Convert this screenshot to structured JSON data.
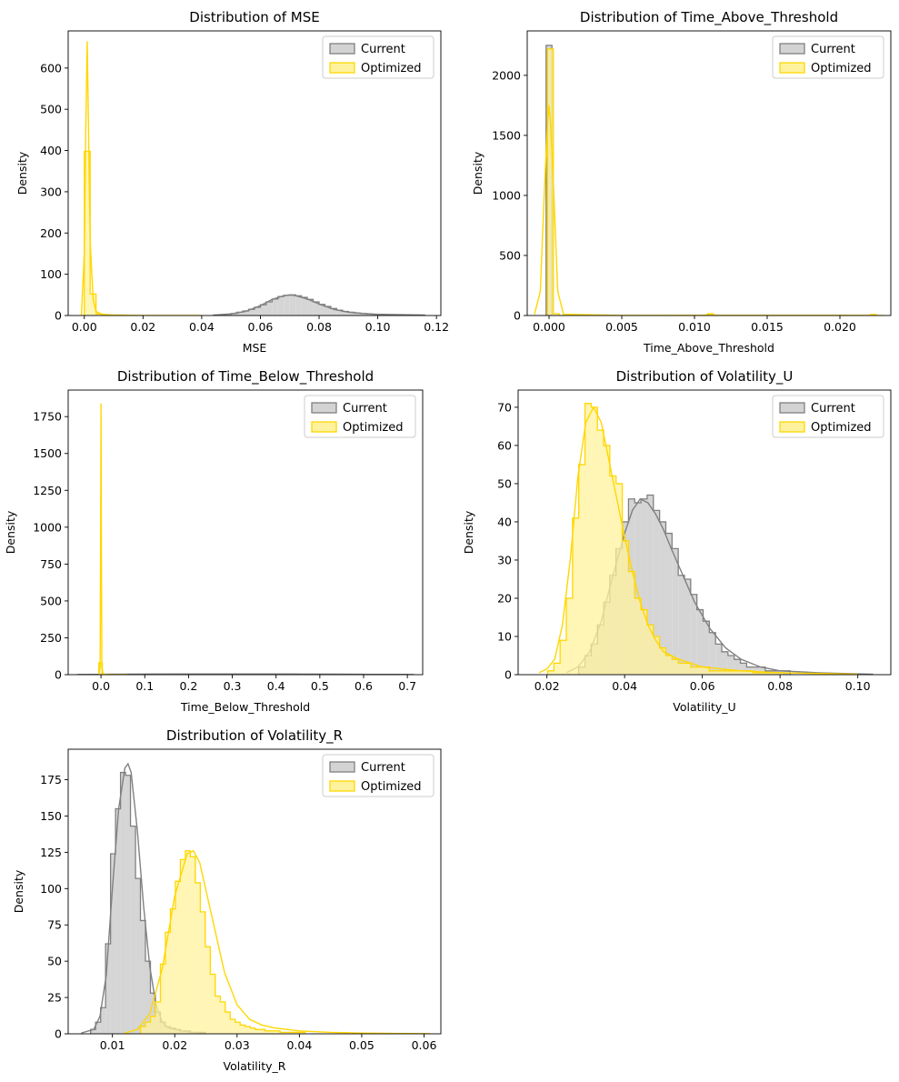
{
  "figure": {
    "colors": {
      "current_fill": "#d3d3d3",
      "current_line": "#808080",
      "optimized_fill": "#fff29e",
      "optimized_line": "#ffd700"
    }
  },
  "chart_data": [
    {
      "type": "histogram",
      "title": "Distribution of MSE",
      "xlabel": "MSE",
      "ylabel": "Density",
      "xlim": [
        -0.0055,
        0.1215
      ],
      "ylim": [
        0,
        690
      ],
      "xticks": [
        0.0,
        0.02,
        0.04,
        0.06,
        0.08,
        0.1,
        0.12
      ],
      "xtick_labels": [
        "0.00",
        "0.02",
        "0.04",
        "0.06",
        "0.08",
        "0.10",
        "0.12"
      ],
      "yticks": [
        0,
        100,
        200,
        300,
        400,
        500,
        600
      ],
      "ytick_labels": [
        "0",
        "100",
        "200",
        "300",
        "400",
        "500",
        "600"
      ],
      "legend": {
        "position": "top-right",
        "entries": [
          "Current",
          "Optimized"
        ]
      },
      "series": [
        {
          "name": "Current",
          "color": "#808080",
          "fill": "#d3d3d3",
          "hist_edges": [
            0.044,
            0.046,
            0.048,
            0.05,
            0.052,
            0.054,
            0.056,
            0.058,
            0.06,
            0.062,
            0.064,
            0.066,
            0.068,
            0.07,
            0.072,
            0.074,
            0.076,
            0.078,
            0.08,
            0.082,
            0.084,
            0.086,
            0.088,
            0.09,
            0.092,
            0.094,
            0.096,
            0.098,
            0.1,
            0.102,
            0.104,
            0.106,
            0.108,
            0.11,
            0.112,
            0.114,
            0.116
          ],
          "hist_values": [
            1,
            2,
            3,
            5,
            8,
            11,
            15,
            20,
            26,
            33,
            40,
            46,
            49,
            50,
            48,
            44,
            39,
            33,
            27,
            22,
            17,
            13,
            10,
            8,
            6,
            5,
            4,
            3,
            3,
            2,
            2,
            2,
            1,
            1,
            1,
            1
          ],
          "kde_x": [
            0.044,
            0.05,
            0.055,
            0.06,
            0.064,
            0.068,
            0.07,
            0.072,
            0.076,
            0.08,
            0.085,
            0.09,
            0.095,
            0.1,
            0.108,
            0.116
          ],
          "kde_y": [
            1,
            4,
            10,
            24,
            39,
            48,
            50,
            48,
            40,
            28,
            15,
            8,
            5,
            3,
            2,
            1
          ]
        },
        {
          "name": "Optimized",
          "color": "#ffd700",
          "fill": "#fff29e",
          "hist_edges": [
            0.0,
            0.002,
            0.004,
            0.006,
            0.008,
            0.01,
            0.012,
            0.014
          ],
          "hist_values": [
            398,
            52,
            4,
            2,
            1,
            1,
            1
          ],
          "kde_x": [
            -0.001,
            0.0,
            0.0005,
            0.001,
            0.0015,
            0.002,
            0.003,
            0.004,
            0.006,
            0.01,
            0.02,
            0.04
          ],
          "kde_y": [
            0,
            150,
            450,
            665,
            420,
            180,
            40,
            10,
            3,
            1,
            0,
            0
          ]
        }
      ]
    },
    {
      "type": "histogram",
      "title": "Distribution of Time_Above_Threshold",
      "xlabel": "Time_Above_Threshold",
      "ylabel": "Density",
      "xlim": [
        -0.0015,
        0.0235
      ],
      "ylim": [
        0,
        2370
      ],
      "xticks": [
        0.0,
        0.005,
        0.01,
        0.015,
        0.02
      ],
      "xtick_labels": [
        "0.000",
        "0.005",
        "0.010",
        "0.015",
        "0.020"
      ],
      "yticks": [
        0,
        500,
        1000,
        1500,
        2000
      ],
      "ytick_labels": [
        "0",
        "500",
        "1000",
        "1500",
        "2000"
      ],
      "legend": {
        "position": "top-right",
        "entries": [
          "Current",
          "Optimized"
        ]
      },
      "series": [
        {
          "name": "Current",
          "color": "#808080",
          "fill": "#d3d3d3",
          "hist_edges": [
            -0.0002,
            0.0002
          ],
          "hist_values": [
            2250
          ],
          "kde_x": [],
          "kde_y": []
        },
        {
          "name": "Optimized",
          "color": "#ffd700",
          "fill": "#fff29e",
          "hist_edges": [
            -0.0001,
            0.0003,
            0.0007,
            0.0109,
            0.0113,
            0.0221,
            0.0225
          ],
          "hist_values": [
            2220,
            15,
            0,
            15,
            0,
            8
          ],
          "kde_x": [
            -0.001,
            -0.0006,
            -0.0003,
            -0.0001,
            0.0,
            0.0001,
            0.0003,
            0.0006,
            0.001,
            0.005,
            0.0105,
            0.011,
            0.0115,
            0.02,
            0.023
          ],
          "kde_y": [
            10,
            200,
            1100,
            1600,
            1750,
            1600,
            1100,
            200,
            10,
            0,
            2,
            5,
            2,
            1,
            0
          ]
        }
      ]
    },
    {
      "type": "histogram",
      "title": "Distribution of Time_Below_Threshold",
      "xlabel": "Time_Below_Threshold",
      "ylabel": "Density",
      "xlim": [
        -0.075,
        0.735
      ],
      "ylim": [
        0,
        1930
      ],
      "xticks": [
        0.0,
        0.1,
        0.2,
        0.3,
        0.4,
        0.5,
        0.6,
        0.7
      ],
      "xtick_labels": [
        "0.0",
        "0.1",
        "0.2",
        "0.3",
        "0.4",
        "0.5",
        "0.6",
        "0.7"
      ],
      "yticks": [
        0,
        250,
        500,
        750,
        1000,
        1250,
        1500,
        1750
      ],
      "ytick_labels": [
        "0",
        "250",
        "500",
        "750",
        "1000",
        "1250",
        "1500",
        "1750"
      ],
      "legend": {
        "position": "top-right",
        "entries": [
          "Current",
          "Optimized"
        ]
      },
      "series": [
        {
          "name": "Current",
          "color": "#808080",
          "fill": "#d3d3d3",
          "hist_edges": [
            0.0,
            0.05,
            0.1,
            0.15,
            0.2,
            0.25,
            0.3,
            0.35,
            0.4,
            0.45,
            0.5,
            0.55,
            0.6,
            0.65,
            0.7
          ],
          "hist_values": [
            3,
            3,
            4,
            4,
            4,
            4,
            4,
            4,
            4,
            3,
            3,
            3,
            2,
            2
          ],
          "kde_x": [
            -0.055,
            0.0,
            0.1,
            0.2,
            0.3,
            0.4,
            0.5,
            0.6,
            0.715
          ],
          "kde_y": [
            1,
            2,
            3,
            4,
            4,
            4,
            3,
            2,
            1
          ]
        },
        {
          "name": "Optimized",
          "color": "#ffd700",
          "fill": "#fff29e",
          "hist_edges": [
            -0.005,
            0.003,
            0.011,
            0.019
          ],
          "hist_values": [
            80,
            2,
            1
          ],
          "kde_x": [
            -0.005,
            -0.002,
            -0.001,
            0.0,
            0.001,
            0.002,
            0.005,
            0.06
          ],
          "kde_y": [
            0,
            50,
            800,
            1840,
            800,
            50,
            0,
            0
          ]
        }
      ]
    },
    {
      "type": "histogram",
      "title": "Distribution of Volatility_U",
      "xlabel": "Volatility_U",
      "ylabel": "Density",
      "xlim": [
        0.0126,
        0.1085
      ],
      "ylim": [
        0,
        74.5
      ],
      "xticks": [
        0.02,
        0.04,
        0.06,
        0.08,
        0.1
      ],
      "xtick_labels": [
        "0.02",
        "0.04",
        "0.06",
        "0.08",
        "0.10"
      ],
      "yticks": [
        0,
        10,
        20,
        30,
        40,
        50,
        60,
        70
      ],
      "ytick_labels": [
        "0",
        "10",
        "20",
        "30",
        "40",
        "50",
        "60",
        "70"
      ],
      "legend": {
        "position": "top-right",
        "entries": [
          "Current",
          "Optimized"
        ]
      },
      "series": [
        {
          "name": "Current",
          "color": "#808080",
          "fill": "#d3d3d3",
          "hist_edges": [
            0.0282,
            0.0298,
            0.0314,
            0.033,
            0.0346,
            0.0362,
            0.0378,
            0.0394,
            0.041,
            0.0426,
            0.0442,
            0.0458,
            0.0474,
            0.049,
            0.0506,
            0.0522,
            0.0538,
            0.0554,
            0.057,
            0.0586,
            0.0602,
            0.0618,
            0.0634,
            0.065,
            0.0666,
            0.0682,
            0.0698,
            0.0714,
            0.073,
            0.0746,
            0.0762,
            0.0778,
            0.0794,
            0.081,
            0.0826
          ],
          "hist_values": [
            2,
            5,
            8,
            13,
            19,
            26,
            33,
            40,
            46,
            45,
            46,
            47,
            43,
            40,
            37,
            33,
            26,
            25,
            21,
            17,
            14,
            11,
            8,
            6,
            5,
            4,
            3,
            2,
            2,
            2,
            1,
            1,
            1,
            1
          ],
          "kde_x": [
            0.025,
            0.028,
            0.031,
            0.034,
            0.037,
            0.04,
            0.042,
            0.044,
            0.046,
            0.048,
            0.05,
            0.052,
            0.055,
            0.058,
            0.062,
            0.066,
            0.07,
            0.075,
            0.08,
            0.09,
            0.104
          ],
          "kde_y": [
            0.5,
            2,
            6,
            14,
            26,
            37,
            43,
            46,
            45,
            42,
            38,
            33,
            26,
            19,
            12,
            7,
            4,
            2,
            1,
            0.5,
            0.1
          ]
        },
        {
          "name": "Optimized",
          "color": "#ffd700",
          "fill": "#fff29e",
          "hist_edges": [
            0.0202,
            0.0218,
            0.0234,
            0.025,
            0.0266,
            0.0282,
            0.0298,
            0.0314,
            0.033,
            0.0346,
            0.0362,
            0.0378,
            0.0394,
            0.041,
            0.0426,
            0.0442,
            0.0458,
            0.0474,
            0.049,
            0.0506,
            0.0522,
            0.0538,
            0.0554,
            0.057,
            0.0586,
            0.0602,
            0.0618,
            0.0634,
            0.065,
            0.0666,
            0.0682,
            0.0698,
            0.0714,
            0.073,
            0.0746,
            0.0762,
            0.0778,
            0.0794,
            0.081
          ],
          "hist_values": [
            1,
            3,
            9,
            20,
            41,
            55,
            71,
            70,
            64,
            60,
            52,
            50,
            35,
            27,
            20,
            17,
            13,
            10,
            7,
            5,
            4,
            3,
            3,
            2,
            2,
            2,
            1,
            1,
            1,
            1,
            1,
            1,
            1,
            0.5,
            0.5,
            0.5,
            0.5,
            0.5
          ],
          "kde_x": [
            0.018,
            0.02,
            0.022,
            0.024,
            0.026,
            0.028,
            0.03,
            0.032,
            0.034,
            0.036,
            0.038,
            0.04,
            0.042,
            0.044,
            0.046,
            0.048,
            0.05,
            0.054,
            0.06,
            0.07,
            0.08,
            0.09,
            0.1
          ],
          "kde_y": [
            0.5,
            1.5,
            4,
            13,
            30,
            52,
            66,
            70,
            66,
            56,
            46,
            36,
            27,
            19,
            13,
            9,
            6,
            4,
            2,
            1,
            0.5,
            0.3,
            0.1
          ]
        }
      ]
    },
    {
      "type": "histogram",
      "title": "Distribution of Volatility_R",
      "xlabel": "Volatility_R",
      "ylabel": "Density",
      "xlim": [
        0.0029,
        0.0627
      ],
      "ylim": [
        0,
        196
      ],
      "xticks": [
        0.01,
        0.02,
        0.03,
        0.04,
        0.05,
        0.06
      ],
      "xtick_labels": [
        "0.01",
        "0.02",
        "0.03",
        "0.04",
        "0.05",
        "0.06"
      ],
      "yticks": [
        0,
        25,
        50,
        75,
        100,
        125,
        150,
        175
      ],
      "ytick_labels": [
        "0",
        "25",
        "50",
        "75",
        "100",
        "125",
        "150",
        "175"
      ],
      "legend": {
        "position": "top-right",
        "entries": [
          "Current",
          "Optimized"
        ]
      },
      "series": [
        {
          "name": "Current",
          "color": "#808080",
          "fill": "#d3d3d3",
          "hist_edges": [
            0.0065,
            0.0073,
            0.0081,
            0.0089,
            0.0097,
            0.0105,
            0.0113,
            0.0121,
            0.0129,
            0.0137,
            0.0145,
            0.0153,
            0.0161,
            0.0169,
            0.0177,
            0.0185,
            0.0193,
            0.0201,
            0.0209,
            0.0217,
            0.0225,
            0.0233,
            0.0241,
            0.0249
          ],
          "hist_values": [
            3,
            8,
            18,
            62,
            124,
            155,
            180,
            178,
            143,
            107,
            78,
            50,
            28,
            15,
            8,
            5,
            4,
            3,
            2,
            2,
            1,
            1,
            1
          ],
          "kde_x": [
            0.005,
            0.007,
            0.008,
            0.009,
            0.01,
            0.011,
            0.012,
            0.0125,
            0.013,
            0.014,
            0.015,
            0.016,
            0.017,
            0.018,
            0.019,
            0.021,
            0.023,
            0.025
          ],
          "kde_y": [
            0.5,
            3,
            12,
            40,
            100,
            155,
            183,
            186,
            180,
            140,
            88,
            46,
            20,
            8,
            4,
            2,
            1,
            0.2
          ]
        },
        {
          "name": "Optimized",
          "color": "#ffd700",
          "fill": "#fff29e",
          "hist_edges": [
            0.0145,
            0.0153,
            0.0161,
            0.0169,
            0.0177,
            0.0185,
            0.0193,
            0.0201,
            0.0209,
            0.0217,
            0.0225,
            0.0233,
            0.0241,
            0.0249,
            0.0257,
            0.0265,
            0.0273,
            0.0281,
            0.0289,
            0.0297,
            0.0305,
            0.0313,
            0.0321,
            0.0329,
            0.0337,
            0.0345,
            0.0353,
            0.0361,
            0.0369,
            0.0377,
            0.0385,
            0.0393,
            0.0401,
            0.0409
          ],
          "hist_values": [
            5,
            8,
            12,
            22,
            48,
            70,
            86,
            105,
            120,
            126,
            122,
            104,
            84,
            60,
            41,
            26,
            22,
            15,
            10,
            8,
            6,
            5,
            4,
            3,
            3,
            2,
            2,
            2,
            1,
            1,
            1,
            1,
            1
          ],
          "kde_x": [
            0.012,
            0.014,
            0.016,
            0.018,
            0.02,
            0.022,
            0.023,
            0.024,
            0.026,
            0.028,
            0.03,
            0.032,
            0.034,
            0.036,
            0.04,
            0.045,
            0.05,
            0.055,
            0.061
          ],
          "kde_y": [
            0.5,
            3,
            14,
            45,
            95,
            124,
            126,
            118,
            80,
            42,
            20,
            10,
            6,
            4,
            2,
            1,
            0.5,
            0.3,
            0.1
          ]
        }
      ]
    }
  ]
}
